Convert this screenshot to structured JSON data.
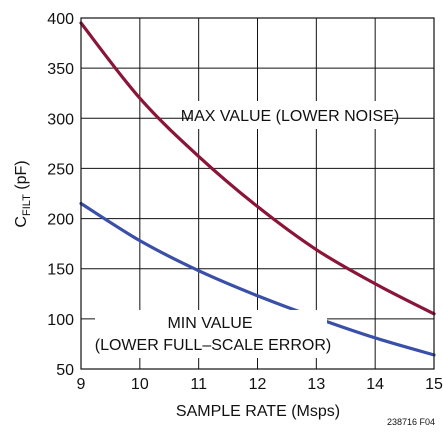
{
  "chart_data": {
    "type": "line",
    "xlabel": "SAMPLE RATE (Msps)",
    "ylabel_main": "C",
    "ylabel_sub": "FILT",
    "ylabel_unit": " (pF)",
    "xlim": [
      9,
      15
    ],
    "ylim": [
      50,
      400
    ],
    "x_ticks": [
      9,
      10,
      11,
      12,
      13,
      14,
      15
    ],
    "y_ticks": [
      50,
      100,
      150,
      200,
      250,
      300,
      350,
      400
    ],
    "grid": true,
    "series": [
      {
        "id": "max",
        "color": "#8a1538",
        "x": [
          9,
          10,
          11,
          12,
          13,
          14,
          15
        ],
        "y": [
          395,
          320,
          262,
          212,
          169,
          135,
          105
        ]
      },
      {
        "id": "min",
        "color": "#3a4fa8",
        "x": [
          9,
          10,
          11,
          12,
          13,
          14,
          15
        ],
        "y": [
          215,
          178,
          148,
          123,
          101,
          81,
          64
        ]
      }
    ],
    "annotations": [
      {
        "id": "max",
        "text": "MAX VALUE (LOWER NOISE)"
      },
      {
        "id": "min-line1",
        "text": "MIN VALUE"
      },
      {
        "id": "min-line2",
        "text": "(LOWER FULL–SCALE ERROR)"
      }
    ],
    "figure_id": "238716 F04"
  }
}
